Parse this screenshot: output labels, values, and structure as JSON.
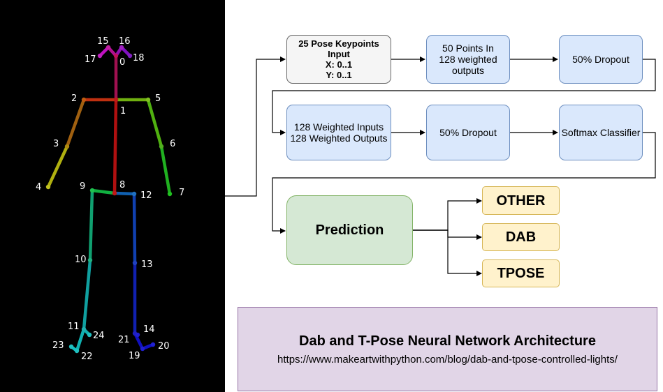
{
  "skeleton": {
    "keypoints": [
      {
        "id": "0",
        "color": "#c0105a"
      },
      {
        "id": "1",
        "color": "#c01818"
      },
      {
        "id": "2",
        "color": "#c05a10"
      },
      {
        "id": "3",
        "color": "#b08a10"
      },
      {
        "id": "4",
        "color": "#c0c020"
      },
      {
        "id": "5",
        "color": "#80c020"
      },
      {
        "id": "6",
        "color": "#50b020"
      },
      {
        "id": "7",
        "color": "#20c020"
      },
      {
        "id": "8",
        "color": "#c01818"
      },
      {
        "id": "9",
        "color": "#20c050"
      },
      {
        "id": "10",
        "color": "#20b080"
      },
      {
        "id": "11",
        "color": "#20b0b0"
      },
      {
        "id": "12",
        "color": "#2070c0"
      },
      {
        "id": "13",
        "color": "#2040c0"
      },
      {
        "id": "14",
        "color": "#2020c0"
      },
      {
        "id": "15",
        "color": "#c020a0"
      },
      {
        "id": "16",
        "color": "#a020c0"
      },
      {
        "id": "17",
        "color": "#c020c0"
      },
      {
        "id": "18",
        "color": "#8020c0"
      },
      {
        "id": "19",
        "color": "#2020d0"
      },
      {
        "id": "20",
        "color": "#2020d0"
      },
      {
        "id": "21",
        "color": "#2020d0"
      },
      {
        "id": "22",
        "color": "#20c0c0"
      },
      {
        "id": "23",
        "color": "#20c0c0"
      },
      {
        "id": "24",
        "color": "#20c0c0"
      }
    ]
  },
  "nodes": {
    "input": {
      "lines": [
        "25 Pose Keypoints",
        "Input",
        "X: 0..1",
        "Y: 0..1"
      ]
    },
    "dense1": {
      "lines": [
        "50 Points In",
        "128 weighted",
        "outputs"
      ]
    },
    "dropout1": {
      "lines": [
        "50% Dropout"
      ]
    },
    "dense2": {
      "lines": [
        "128 Weighted Inputs",
        "128 Weighted Outputs"
      ]
    },
    "dropout2": {
      "lines": [
        "50% Dropout"
      ]
    },
    "softmax": {
      "lines": [
        "Softmax Classifier"
      ]
    },
    "prediction": {
      "label": "Prediction"
    },
    "outputs": [
      "OTHER",
      "DAB",
      "TPOSE"
    ]
  },
  "caption": {
    "title": "Dab and T-Pose Neural Network Architecture",
    "url": "https://www.makeartwithpython.com/blog/dab-and-tpose-controlled-lights/"
  },
  "colors": {
    "blue_fill": "#dae8fc",
    "blue_stroke": "#6c8ebf",
    "gray_fill": "#f5f5f5",
    "green_fill": "#d5e8d4",
    "yellow_fill": "#fff2cc",
    "purple_fill": "#e1d5e7"
  }
}
